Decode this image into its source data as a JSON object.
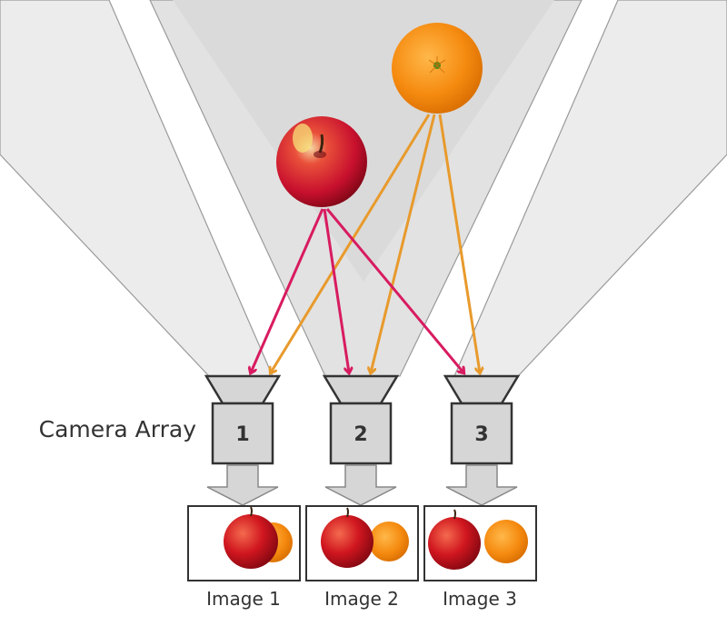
{
  "diagram": {
    "array_label": "Camera Array",
    "cameras": [
      {
        "number": "1",
        "caption": "Image 1"
      },
      {
        "number": "2",
        "caption": "Image 2"
      },
      {
        "number": "3",
        "caption": "Image 3"
      }
    ],
    "objects": [
      {
        "name": "apple",
        "ray_color": "#d81b60"
      },
      {
        "name": "orange",
        "ray_color": "#e89a2c"
      }
    ]
  }
}
